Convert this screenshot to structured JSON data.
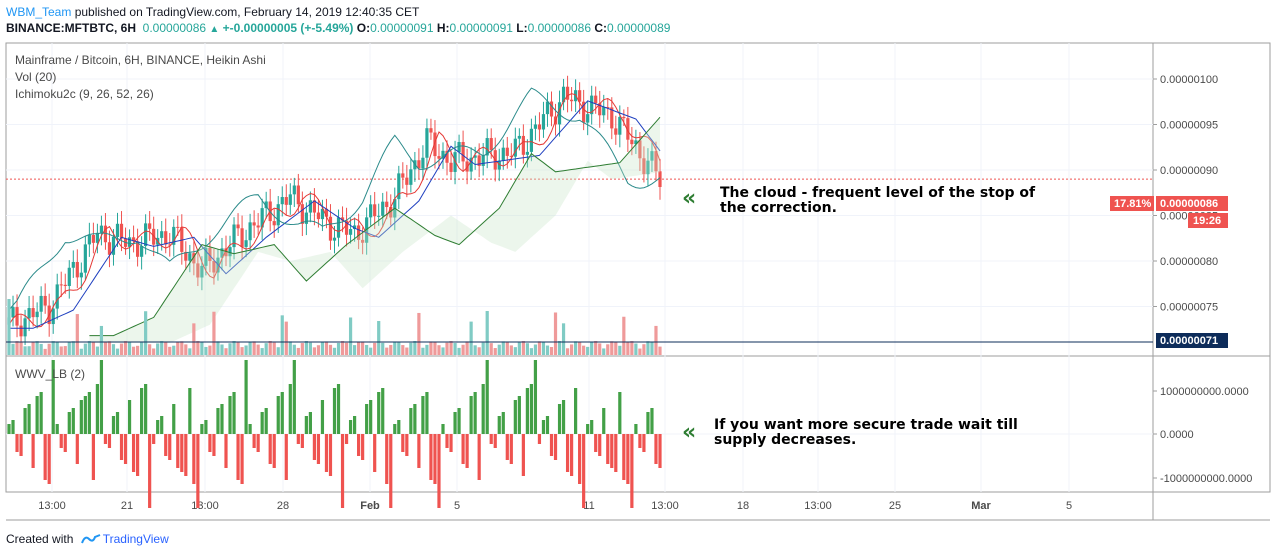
{
  "header": {
    "publisher": "WBM_Team",
    "published_text": "published on TradingView.com, February 14, 2019 12:40:35 CET",
    "symbol": "BINANCE:MFTBTC, 6H",
    "last": "0.00000086",
    "change": "+-0.00000005 (+-5.49%)",
    "o_label": "O:",
    "o_value": "0.00000091",
    "h_label": "H:",
    "h_value": "0.00000091",
    "l_label": "L:",
    "l_value": "0.00000086",
    "c_label": "C:",
    "c_value": "0.00000089"
  },
  "legend": {
    "title": "Mainframe / Bitcoin, 6H, BINANCE, Heikin Ashi",
    "vol": "Vol (20)",
    "ichimoku": "Ichimoku2c (9, 26, 52, 26)",
    "wwv": "WWV_LB (2)"
  },
  "annotations": {
    "cloud": [
      "The cloud - frequent level of the stop of",
      "the correction."
    ],
    "supply": [
      "If you want more secure trade wait till",
      "supply decreases."
    ],
    "chevron": "«"
  },
  "footer": {
    "created_with": "Created with",
    "brand": "TradingView"
  },
  "colors": {
    "up": "#26a69a",
    "down": "#ef5350",
    "up_dark": "#43a047",
    "tenkan": "#e53935",
    "kijun": "#1e3fbf",
    "cloud_line": "#2e7d32",
    "span_b": "#7b1fa2",
    "conv": "#2a8a8a"
  },
  "chart_data": {
    "type": "candlestick",
    "title": "Mainframe / Bitcoin, 6H, BINANCE, Heikin Ashi",
    "y_ticks": [
      "0.00000100",
      "0.00000095",
      "0.00000090",
      "0.00000085",
      "0.00000080",
      "0.00000075"
    ],
    "y_range": [
      7e-07,
      1.02e-06
    ],
    "x_ticks": [
      "13:00",
      "21",
      "13:00",
      "28",
      "Feb",
      "5",
      "11",
      "13:00",
      "18",
      "13:00",
      "25",
      "Mar",
      "5"
    ],
    "price_label": {
      "pct": "17.81%",
      "price": "0.00000086",
      "countdown": "19:26"
    },
    "hline_label": "0.00000071",
    "candles_up": [
      7.2e-07,
      7.3e-07,
      7.4e-07,
      7.6e-07,
      7.7e-07,
      7.9e-07,
      8.1e-07,
      8.3e-07,
      8.2e-07,
      8.3e-07,
      8.1e-07,
      8.2e-07,
      8.3e-07,
      8.4e-07,
      8.3e-07,
      8.2e-07,
      7.9e-07,
      8e-07,
      8.2e-07,
      8.5e-07,
      8.8e-07,
      8.9e-07,
      8.5e-07,
      8.4e-07,
      8.7e-07,
      8.9e-07,
      8.6e-07,
      8.5e-07,
      8.7e-07,
      9e-07,
      9.5e-07,
      9.7e-07,
      9.5e-07,
      9.3e-07,
      9.5e-07,
      9.8e-07,
      9.9e-07,
      9.7e-07,
      9.6e-07
    ],
    "volume_note": "volume bars per candle",
    "wwv_ticks": [
      "1000000000.0000",
      "0.0000",
      "-1000000000.0000"
    ],
    "wwv_range": [
      -1200000000,
      1600000000
    ]
  }
}
